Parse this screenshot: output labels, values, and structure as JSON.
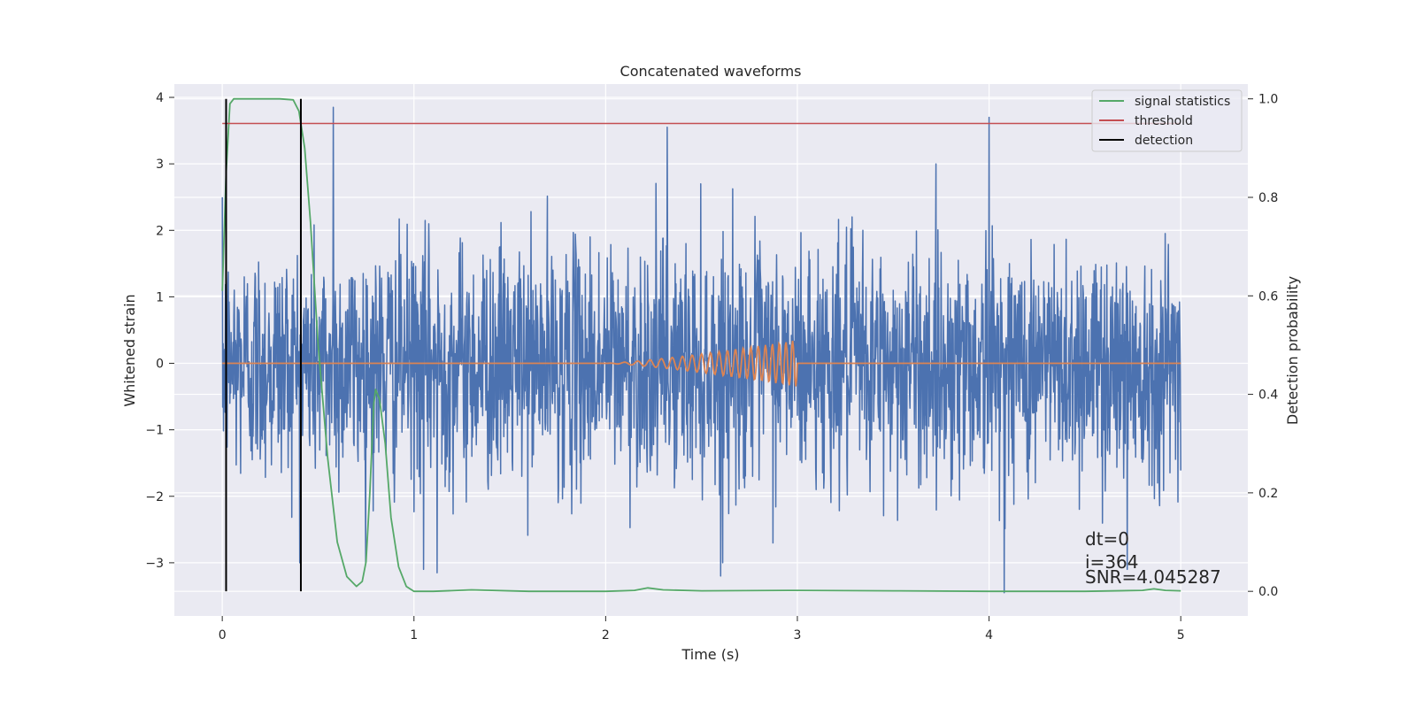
{
  "chart_data": {
    "type": "line",
    "title": "Concatenated waveforms",
    "xlabel": "Time (s)",
    "ylabel_left": "Whitened strain",
    "ylabel_right": "Detection probability",
    "xlim": [
      -0.25,
      5.35
    ],
    "ylim_left": [
      -3.8,
      4.2
    ],
    "ylim_right": [
      -0.05,
      1.03
    ],
    "xticks": [
      0,
      1,
      2,
      3,
      4,
      5
    ],
    "yticks_left": [
      -3,
      -2,
      -1,
      0,
      1,
      2,
      3,
      4
    ],
    "yticks_right": [
      0.0,
      0.2,
      0.4,
      0.6,
      0.8,
      1.0
    ],
    "xtick_labels": [
      "0",
      "1",
      "2",
      "3",
      "4",
      "5"
    ],
    "ytick_labels_left": [
      "−3",
      "−2",
      "−1",
      "0",
      "1",
      "2",
      "3",
      "4"
    ],
    "ytick_labels_right": [
      "0.0",
      "0.2",
      "0.4",
      "0.6",
      "0.8",
      "1.0"
    ],
    "grid": true,
    "legend_position": "top-right",
    "series": [
      {
        "name": "",
        "color": "#4c72b0",
        "axis": "left",
        "style": "noise",
        "x_range": [
          0,
          5
        ],
        "amplitude_sigma": 0.9,
        "spikes": [
          {
            "x": 0.58,
            "y": 3.85
          },
          {
            "x": 2.32,
            "y": 3.55
          },
          {
            "x": 4.0,
            "y": 3.7
          },
          {
            "x": 4.08,
            "y": -3.45
          },
          {
            "x": 2.6,
            "y": -3.2
          },
          {
            "x": 4.72,
            "y": -3.1
          },
          {
            "x": 1.05,
            "y": -3.1
          },
          {
            "x": 1.12,
            "y": -3.15
          }
        ]
      },
      {
        "name": "",
        "color": "#dd8452",
        "axis": "left",
        "style": "chirp",
        "x_range": [
          0,
          5
        ],
        "chirp_start": 2.0,
        "chirp_end": 3.0,
        "peak_amplitude": 0.35
      },
      {
        "name": "signal statistics",
        "color": "#55a868",
        "axis": "right",
        "x": [
          0.0,
          0.02,
          0.04,
          0.06,
          0.1,
          0.2,
          0.3,
          0.37,
          0.4,
          0.43,
          0.46,
          0.5,
          0.55,
          0.6,
          0.65,
          0.7,
          0.73,
          0.75,
          0.77,
          0.79,
          0.8,
          0.82,
          0.85,
          0.88,
          0.92,
          0.96,
          1.0,
          1.1,
          1.3,
          1.6,
          2.0,
          2.15,
          2.22,
          2.3,
          2.5,
          3.0,
          3.5,
          4.0,
          4.5,
          4.8,
          4.86,
          4.92,
          5.0
        ],
        "y": [
          0.61,
          0.85,
          0.99,
          1.0,
          1.0,
          1.0,
          1.0,
          0.998,
          0.975,
          0.9,
          0.75,
          0.5,
          0.27,
          0.1,
          0.03,
          0.01,
          0.02,
          0.06,
          0.2,
          0.38,
          0.41,
          0.39,
          0.3,
          0.15,
          0.05,
          0.01,
          0.0,
          0.0,
          0.003,
          0.0,
          0.0,
          0.002,
          0.007,
          0.003,
          0.001,
          0.002,
          0.001,
          0.0,
          0.0,
          0.002,
          0.005,
          0.002,
          0.001
        ]
      },
      {
        "name": "threshold",
        "color": "#c44e52",
        "axis": "right",
        "x": [
          0.0,
          5.0
        ],
        "y": [
          0.95,
          0.95
        ]
      },
      {
        "name": "detection",
        "color": "#000000",
        "axis": "right",
        "style": "vlines",
        "x": [
          0.02,
          0.41
        ],
        "ymin": 0.0,
        "ymax": 1.0
      }
    ],
    "annotations": [
      "dt=0",
      "i=364",
      "SNR=4.045287"
    ]
  }
}
